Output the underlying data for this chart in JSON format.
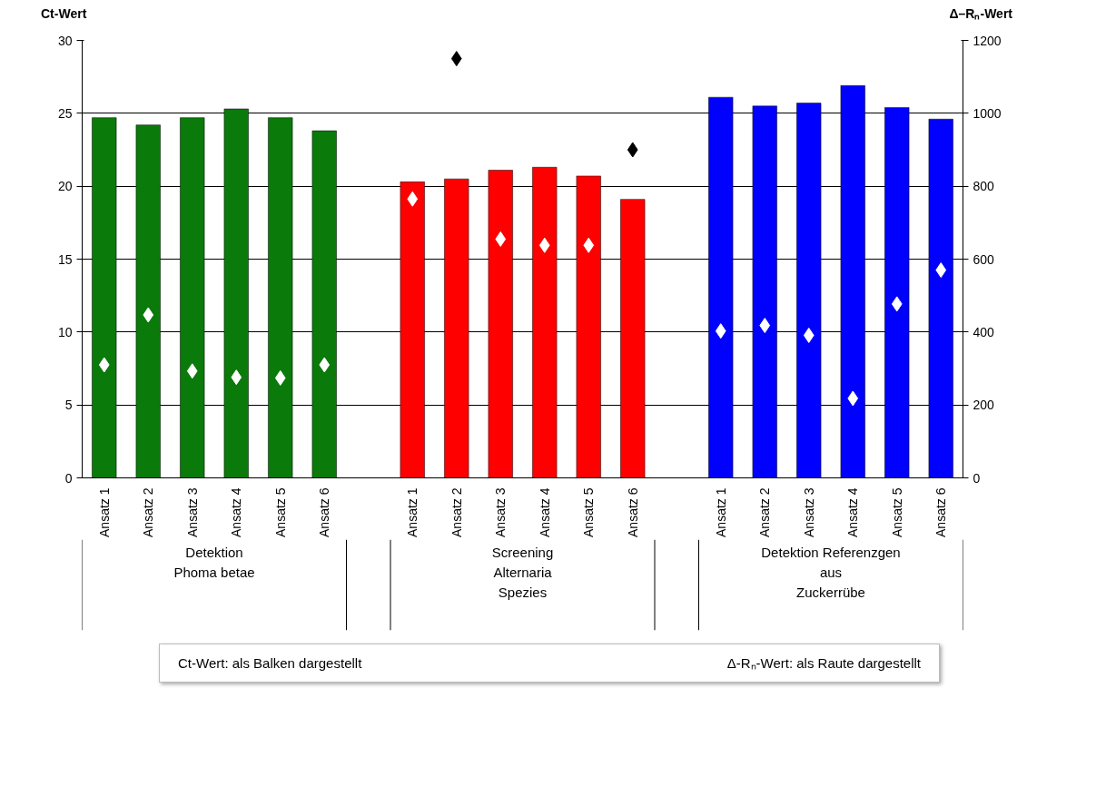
{
  "chart_data": {
    "type": "bar",
    "ylabel": "Ct-Wert",
    "y2label": "Δ–Rₙ-Wert",
    "categories": [
      "Ansatz 1",
      "Ansatz 2",
      "Ansatz 3",
      "Ansatz 4",
      "Ansatz 5",
      "Ansatz 6",
      null,
      "Ansatz 1",
      "Ansatz 2",
      "Ansatz 3",
      "Ansatz 4",
      "Ansatz 5",
      "Ansatz 6",
      null,
      "Ansatz 1",
      "Ansatz 2",
      "Ansatz 3",
      "Ansatz 4",
      "Ansatz 5",
      "Ansatz 6"
    ],
    "series": [
      {
        "values": [
          24.7,
          24.2,
          24.7,
          25.3,
          24.7,
          23.8,
          null,
          20.3,
          20.5,
          21.1,
          21.3,
          20.7,
          19.1,
          null,
          26.1,
          25.5,
          25.7,
          26.9,
          25.4,
          24.6
        ],
        "colors": [
          "#0a7a0a",
          "#0a7a0a",
          "#0a7a0a",
          "#0a7a0a",
          "#0a7a0a",
          "#0a7a0a",
          "#ffffff",
          "#ff0000",
          "#ff0000",
          "#ff0000",
          "#ff0000",
          "#ff0000",
          "#ff0000",
          "#ffffff",
          "#0000ff",
          "#0000ff",
          "#0000ff",
          "#0000ff",
          "#0000ff",
          "#0000ff"
        ]
      },
      {
        "type": "scatter",
        "axis": "y2",
        "marker": "diamond",
        "values": [
          310,
          447,
          293,
          276,
          274,
          310,
          null,
          765,
          1150,
          655,
          638,
          638,
          900,
          null,
          403,
          418,
          391,
          218,
          477,
          570
        ],
        "colors": [
          "#ffffff",
          "#ffffff",
          "#ffffff",
          "#ffffff",
          "#ffffff",
          "#ffffff",
          "#ffffff",
          "#ffffff",
          "#000000",
          "#ffffff",
          "#ffffff",
          "#ffffff",
          "#000000",
          "#ffffff",
          "#ffffff",
          "#ffffff",
          "#ffffff",
          "#ffffff",
          "#ffffff",
          "#ffffff"
        ]
      }
    ],
    "ylim": [
      0,
      30
    ],
    "yticks": [
      0,
      5,
      10,
      15,
      20,
      25,
      30
    ],
    "y2lim": [
      0,
      1200
    ],
    "y2ticks": [
      0,
      200,
      400,
      600,
      800,
      1000,
      1200
    ],
    "grid": "y",
    "annotations": [
      "Detektion\nPhoma betae",
      "Screening\nAlternaria\nSpezies",
      "Detektion Referenzgen\naus\nZuckerrübe",
      "Ct-Wert: als Balken dargestellt",
      "Δ-Rₙ-Wert: als Raute dargestellt"
    ]
  }
}
